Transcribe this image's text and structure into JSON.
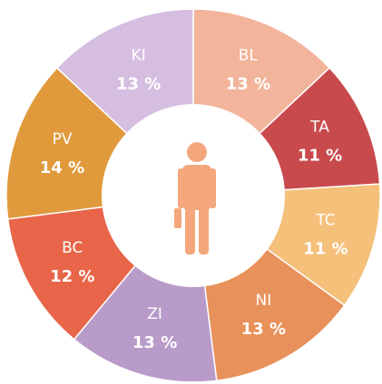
{
  "chart_data": {
    "type": "donut",
    "categories": [
      "BL",
      "TA",
      "TC",
      "NI",
      "ZI",
      "BC",
      "PV",
      "KI"
    ],
    "values": [
      13,
      11,
      11,
      13,
      13,
      12,
      14,
      13
    ],
    "value_labels": [
      "13 %",
      "11 %",
      "11 %",
      "13 %",
      "13 %",
      "12 %",
      "14 %",
      "13 %"
    ],
    "colors": [
      "#f2b49a",
      "#c84a4c",
      "#f4c07a",
      "#e8915a",
      "#b99bca",
      "#e8654a",
      "#e09a3c",
      "#d6bee0"
    ]
  }
}
